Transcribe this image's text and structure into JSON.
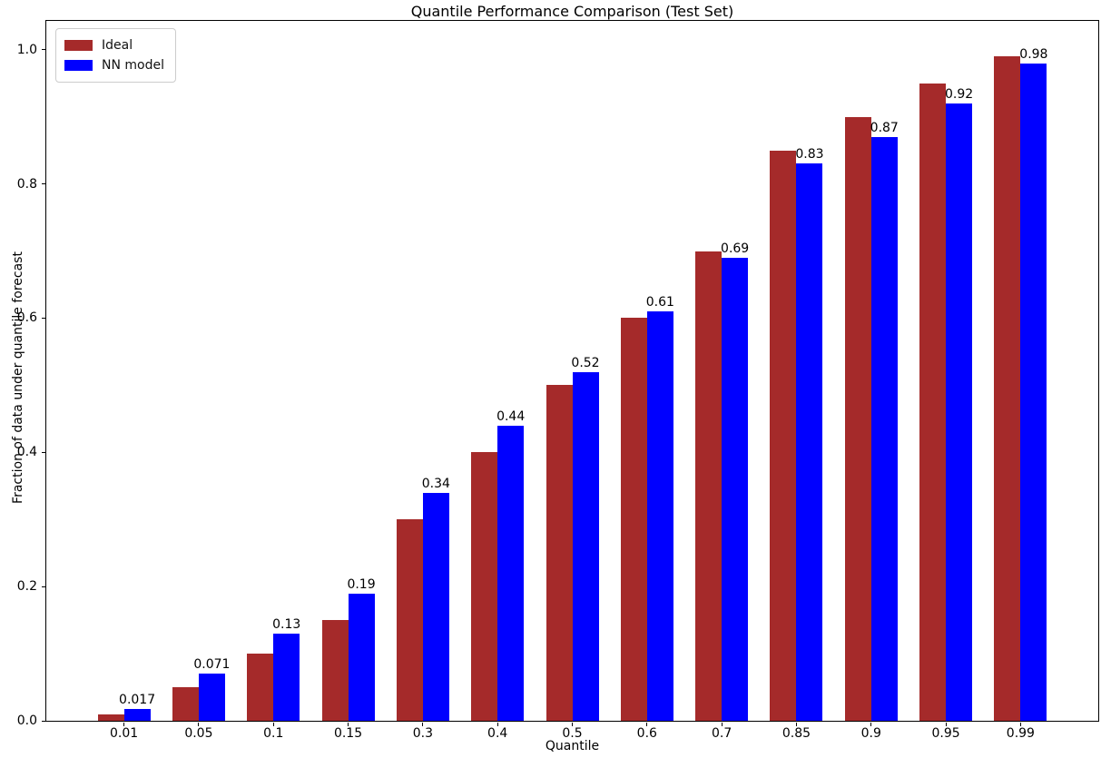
{
  "chart_data": {
    "type": "bar",
    "title": "Quantile Performance Comparison (Test Set)",
    "xlabel": "Quantile",
    "ylabel": "Fraction of data under quantile forecast",
    "categories": [
      "0.01",
      "0.05",
      "0.1",
      "0.15",
      "0.3",
      "0.4",
      "0.5",
      "0.6",
      "0.7",
      "0.85",
      "0.9",
      "0.95",
      "0.99"
    ],
    "series": [
      {
        "name": "Ideal",
        "color": "#A52A2A",
        "values": [
          0.01,
          0.05,
          0.1,
          0.15,
          0.3,
          0.4,
          0.5,
          0.6,
          0.7,
          0.85,
          0.9,
          0.95,
          0.99
        ]
      },
      {
        "name": "NN model",
        "color": "#0000FF",
        "values": [
          0.017,
          0.071,
          0.13,
          0.19,
          0.34,
          0.44,
          0.52,
          0.61,
          0.69,
          0.83,
          0.87,
          0.92,
          0.98
        ]
      }
    ],
    "bar_labels": [
      "0.017",
      "0.071",
      "0.13",
      "0.19",
      "0.34",
      "0.44",
      "0.52",
      "0.61",
      "0.69",
      "0.83",
      "0.87",
      "0.92",
      "0.98"
    ],
    "yticks": [
      "0.0",
      "0.2",
      "0.4",
      "0.6",
      "0.8",
      "1.0"
    ],
    "ytick_values": [
      0.0,
      0.2,
      0.4,
      0.6,
      0.8,
      1.0
    ],
    "ylim": [
      0,
      1.043
    ],
    "legend_position": "upper left",
    "grid": false,
    "text_color": "#000000",
    "spine_color": "#000000"
  }
}
